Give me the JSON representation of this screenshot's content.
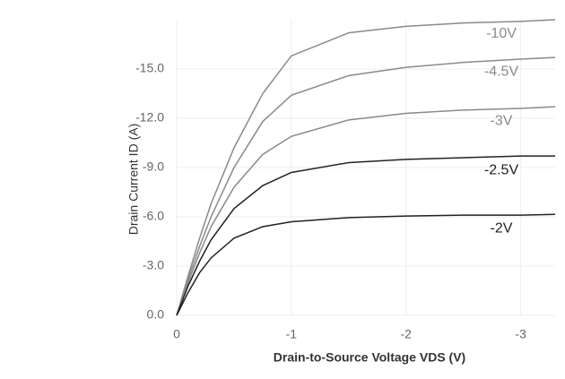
{
  "chart_data": {
    "type": "line",
    "x_label": "Drain-to-Source Voltage VDS (V)",
    "y_label": "Drain Current ID (A)",
    "x": [
      0,
      -0.1,
      -0.2,
      -0.3,
      -0.5,
      -0.75,
      -1,
      -1.5,
      -2,
      -2.5,
      -3,
      -3.3
    ],
    "series": [
      {
        "name": "-10V",
        "color": "#8a8a8a",
        "values": [
          0,
          -2.4,
          -4.7,
          -6.8,
          -10.2,
          -13.5,
          -15.8,
          -17.2,
          -17.6,
          -17.8,
          -17.9,
          -18
        ]
      },
      {
        "name": "-4.5V",
        "color": "#8a8a8a",
        "values": [
          0,
          -2.2,
          -4.2,
          -6,
          -9,
          -11.8,
          -13.4,
          -14.6,
          -15.1,
          -15.4,
          -15.6,
          -15.7
        ]
      },
      {
        "name": "-3V",
        "color": "#8a8a8a",
        "values": [
          0,
          -2,
          -3.8,
          -5.4,
          -7.8,
          -9.8,
          -10.9,
          -11.9,
          -12.3,
          -12.5,
          -12.6,
          -12.7
        ]
      },
      {
        "name": "-2.5V",
        "color": "#222222",
        "values": [
          0,
          -1.8,
          -3.3,
          -4.6,
          -6.5,
          -7.9,
          -8.7,
          -9.3,
          -9.5,
          -9.6,
          -9.7,
          -9.7
        ]
      },
      {
        "name": "-2V",
        "color": "#222222",
        "values": [
          0,
          -1.4,
          -2.6,
          -3.5,
          -4.7,
          -5.4,
          -5.7,
          -5.95,
          -6.05,
          -6.1,
          -6.1,
          -6.15
        ]
      }
    ],
    "xlim": [
      0,
      -3.3
    ],
    "xticks": [
      0,
      -1,
      -2,
      -3
    ],
    "ylim": [
      0,
      -18
    ],
    "yticks": [
      {
        "value": 0,
        "label": "0.0"
      },
      {
        "value": -3,
        "label": "-3.0"
      },
      {
        "value": -6,
        "label": "-6.0"
      },
      {
        "value": -9,
        "label": "-9.0"
      },
      {
        "value": -12,
        "label": "-12.0"
      },
      {
        "value": -15,
        "label": "-15.0"
      }
    ],
    "grid": true
  }
}
